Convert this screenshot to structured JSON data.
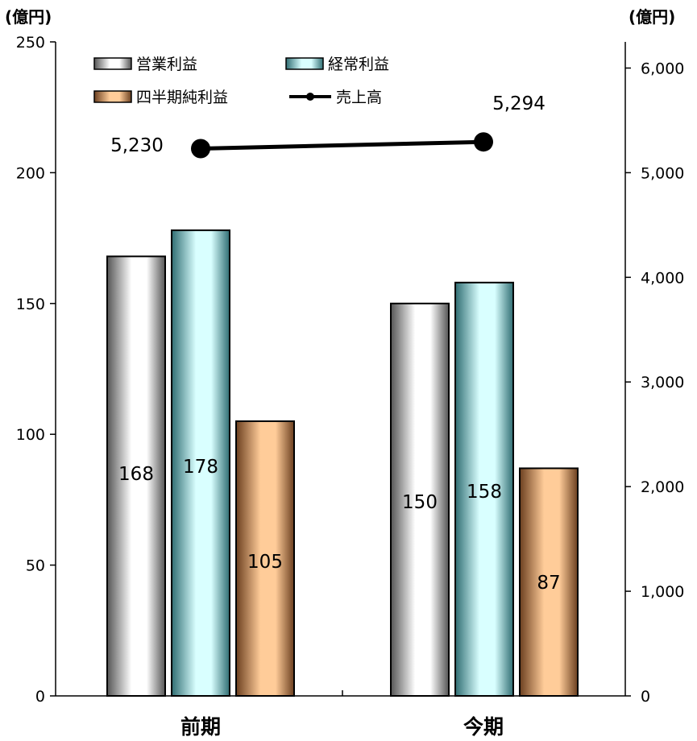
{
  "chart_data": {
    "type": "bar",
    "categories": [
      "前期",
      "今期"
    ],
    "left_unit": "(億円)",
    "right_unit": "(億円)",
    "ylim_left": [
      0,
      250
    ],
    "ylim_right": [
      0,
      6250
    ],
    "left_ticks": [
      "0",
      "50",
      "100",
      "150",
      "200",
      "250"
    ],
    "right_ticks": [
      "0",
      "1,000",
      "2,000",
      "3,000",
      "4,000",
      "5,000",
      "6,000"
    ],
    "series": [
      {
        "name": "営業利益",
        "type": "bar",
        "axis": "left",
        "values": [
          168,
          150
        ],
        "labels": [
          "168",
          "150"
        ],
        "color_dark": "#555555",
        "color_light": "#ffffff"
      },
      {
        "name": "経常利益",
        "type": "bar",
        "axis": "left",
        "values": [
          178,
          158
        ],
        "labels": [
          "178",
          "158"
        ],
        "color_dark": "#2f6d72",
        "color_light": "#d9ffff"
      },
      {
        "name": "四半期純利益",
        "type": "bar",
        "axis": "left",
        "values": [
          105,
          87
        ],
        "labels": [
          "105",
          "87"
        ],
        "color_dark": "#6b3f1f",
        "color_light": "#ffcc99"
      },
      {
        "name": "売上高",
        "type": "line",
        "axis": "right",
        "values": [
          5230,
          5294
        ],
        "labels": [
          "5,230",
          "5,294"
        ],
        "color": "#000000"
      }
    ],
    "grid": false,
    "legend_position": "top-left"
  }
}
